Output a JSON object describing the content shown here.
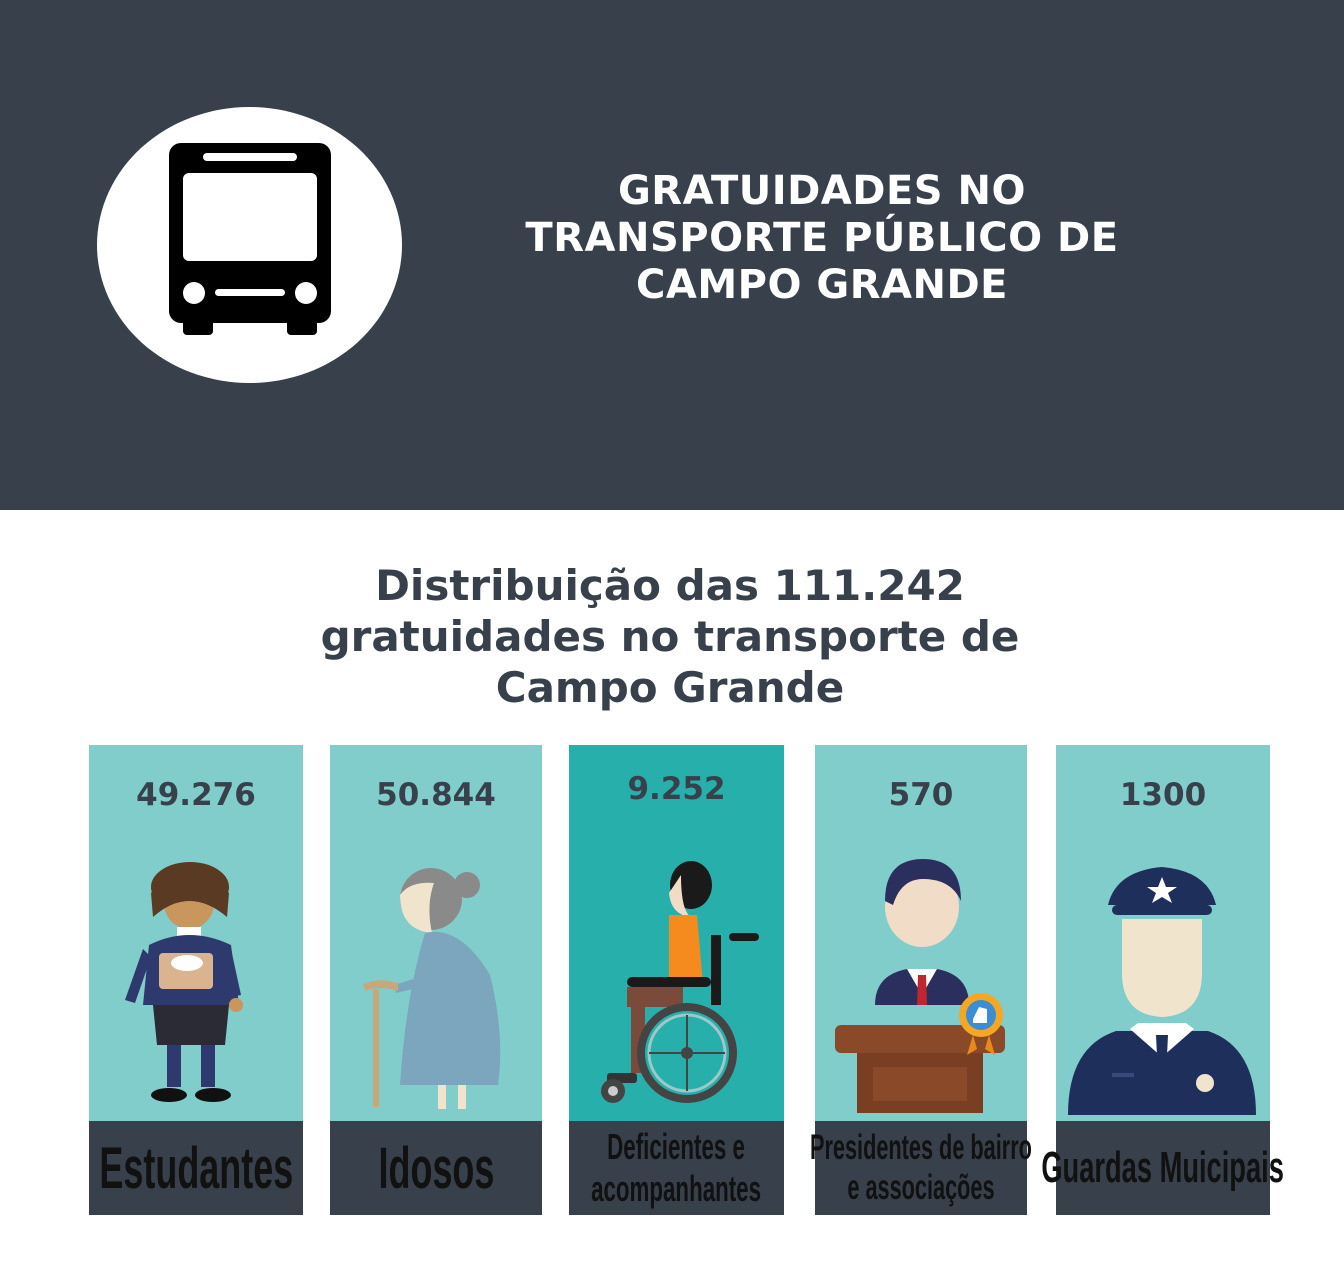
{
  "header": {
    "icon": "bus-icon",
    "title_lines": [
      "GRATUIDADES NO",
      "TRANSPORTE PÚBLICO DE",
      "CAMPO GRANDE"
    ],
    "colors": {
      "background": "#37404b",
      "text": "#ffffff"
    }
  },
  "subtitle_lines": [
    "Distribuição das 111.242",
    "gratuidades no transporte de",
    "Campo Grande"
  ],
  "categories": [
    {
      "value": "49.276",
      "label_lines": [
        "Estudantes"
      ],
      "icon": "student-icon"
    },
    {
      "value": "50.844",
      "label_lines": [
        "Idosos"
      ],
      "icon": "elderly-woman-icon"
    },
    {
      "value": "9.252",
      "label_lines": [
        "Deficientes e",
        "acompanhantes"
      ],
      "icon": "wheelchair-user-icon"
    },
    {
      "value": "570",
      "label_lines": [
        "Presidentes de bairro",
        "e associações"
      ],
      "icon": "neighborhood-president-icon"
    },
    {
      "value": "1300",
      "label_lines": [
        "Guardas Muicipais"
      ],
      "icon": "police-guard-icon"
    }
  ],
  "colors": {
    "card": "#80cdcb",
    "card_highlight": "#27b0ab",
    "label_box": "#37404b",
    "text_dark": "#37404b"
  }
}
